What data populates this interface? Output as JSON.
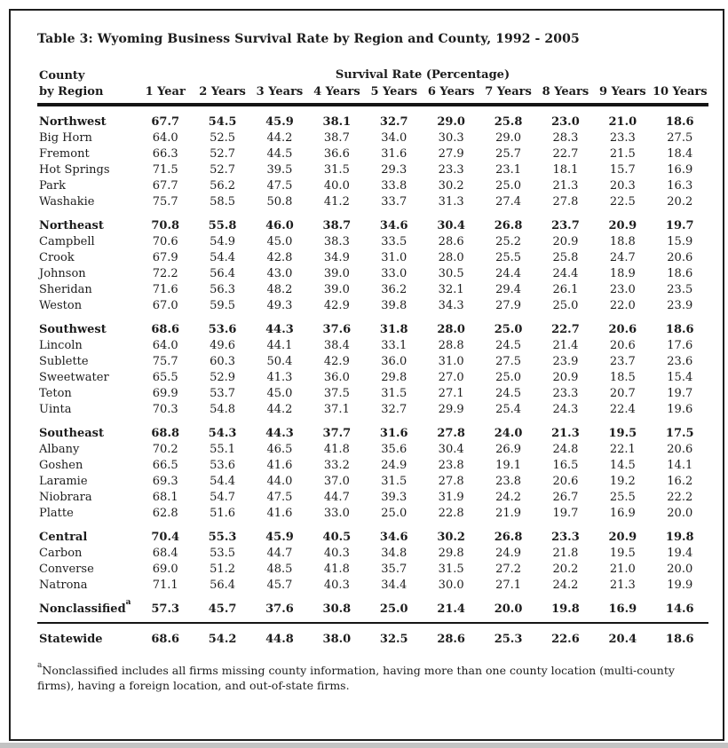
{
  "title": "Table 3: Wyoming Business Survival Rate by Region and County, 1992 - 2005",
  "table": {
    "row_header": {
      "line1": "County",
      "line2": "by Region"
    },
    "span_header": "Survival Rate (Percentage)",
    "year_headers": [
      "1 Year",
      "2 Years",
      "3 Years",
      "4 Years",
      "5 Years",
      "6 Years",
      "7 Years",
      "8 Years",
      "9 Years",
      "10 Years"
    ],
    "groups": [
      {
        "region": "Northwest",
        "values": [
          "67.7",
          "54.5",
          "45.9",
          "38.1",
          "32.7",
          "29.0",
          "25.8",
          "23.0",
          "21.0",
          "18.6"
        ],
        "counties": [
          {
            "name": "Big Horn",
            "values": [
              "64.0",
              "52.5",
              "44.2",
              "38.7",
              "34.0",
              "30.3",
              "29.0",
              "28.3",
              "23.3",
              "27.5"
            ]
          },
          {
            "name": "Fremont",
            "values": [
              "66.3",
              "52.7",
              "44.5",
              "36.6",
              "31.6",
              "27.9",
              "25.7",
              "22.7",
              "21.5",
              "18.4"
            ]
          },
          {
            "name": "Hot Springs",
            "values": [
              "71.5",
              "52.7",
              "39.5",
              "31.5",
              "29.3",
              "23.3",
              "23.1",
              "18.1",
              "15.7",
              "16.9"
            ]
          },
          {
            "name": "Park",
            "values": [
              "67.7",
              "56.2",
              "47.5",
              "40.0",
              "33.8",
              "30.2",
              "25.0",
              "21.3",
              "20.3",
              "16.3"
            ]
          },
          {
            "name": "Washakie",
            "values": [
              "75.7",
              "58.5",
              "50.8",
              "41.2",
              "33.7",
              "31.3",
              "27.4",
              "27.8",
              "22.5",
              "20.2"
            ]
          }
        ]
      },
      {
        "region": "Northeast",
        "values": [
          "70.8",
          "55.8",
          "46.0",
          "38.7",
          "34.6",
          "30.4",
          "26.8",
          "23.7",
          "20.9",
          "19.7"
        ],
        "counties": [
          {
            "name": "Campbell",
            "values": [
              "70.6",
              "54.9",
              "45.0",
              "38.3",
              "33.5",
              "28.6",
              "25.2",
              "20.9",
              "18.8",
              "15.9"
            ]
          },
          {
            "name": "Crook",
            "values": [
              "67.9",
              "54.4",
              "42.8",
              "34.9",
              "31.0",
              "28.0",
              "25.5",
              "25.8",
              "24.7",
              "20.6"
            ]
          },
          {
            "name": "Johnson",
            "values": [
              "72.2",
              "56.4",
              "43.0",
              "39.0",
              "33.0",
              "30.5",
              "24.4",
              "24.4",
              "18.9",
              "18.6"
            ]
          },
          {
            "name": "Sheridan",
            "values": [
              "71.6",
              "56.3",
              "48.2",
              "39.0",
              "36.2",
              "32.1",
              "29.4",
              "26.1",
              "23.0",
              "23.5"
            ]
          },
          {
            "name": "Weston",
            "values": [
              "67.0",
              "59.5",
              "49.3",
              "42.9",
              "39.8",
              "34.3",
              "27.9",
              "25.0",
              "22.0",
              "23.9"
            ]
          }
        ]
      },
      {
        "region": "Southwest",
        "values": [
          "68.6",
          "53.6",
          "44.3",
          "37.6",
          "31.8",
          "28.0",
          "25.0",
          "22.7",
          "20.6",
          "18.6"
        ],
        "counties": [
          {
            "name": "Lincoln",
            "values": [
              "64.0",
              "49.6",
              "44.1",
              "38.4",
              "33.1",
              "28.8",
              "24.5",
              "21.4",
              "20.6",
              "17.6"
            ]
          },
          {
            "name": "Sublette",
            "values": [
              "75.7",
              "60.3",
              "50.4",
              "42.9",
              "36.0",
              "31.0",
              "27.5",
              "23.9",
              "23.7",
              "23.6"
            ]
          },
          {
            "name": "Sweetwater",
            "values": [
              "65.5",
              "52.9",
              "41.3",
              "36.0",
              "29.8",
              "27.0",
              "25.0",
              "20.9",
              "18.5",
              "15.4"
            ]
          },
          {
            "name": "Teton",
            "values": [
              "69.9",
              "53.7",
              "45.0",
              "37.5",
              "31.5",
              "27.1",
              "24.5",
              "23.3",
              "20.7",
              "19.7"
            ]
          },
          {
            "name": "Uinta",
            "values": [
              "70.3",
              "54.8",
              "44.2",
              "37.1",
              "32.7",
              "29.9",
              "25.4",
              "24.3",
              "22.4",
              "19.6"
            ]
          }
        ]
      },
      {
        "region": "Southeast",
        "values": [
          "68.8",
          "54.3",
          "44.3",
          "37.7",
          "31.6",
          "27.8",
          "24.0",
          "21.3",
          "19.5",
          "17.5"
        ],
        "counties": [
          {
            "name": "Albany",
            "values": [
              "70.2",
              "55.1",
              "46.5",
              "41.8",
              "35.6",
              "30.4",
              "26.9",
              "24.8",
              "22.1",
              "20.6"
            ]
          },
          {
            "name": "Goshen",
            "values": [
              "66.5",
              "53.6",
              "41.6",
              "33.2",
              "24.9",
              "23.8",
              "19.1",
              "16.5",
              "14.5",
              "14.1"
            ]
          },
          {
            "name": "Laramie",
            "values": [
              "69.3",
              "54.4",
              "44.0",
              "37.0",
              "31.5",
              "27.8",
              "23.8",
              "20.6",
              "19.2",
              "16.2"
            ]
          },
          {
            "name": "Niobrara",
            "values": [
              "68.1",
              "54.7",
              "47.5",
              "44.7",
              "39.3",
              "31.9",
              "24.2",
              "26.7",
              "25.5",
              "22.2"
            ]
          },
          {
            "name": "Platte",
            "values": [
              "62.8",
              "51.6",
              "41.6",
              "33.0",
              "25.0",
              "22.8",
              "21.9",
              "19.7",
              "16.9",
              "20.0"
            ]
          }
        ]
      },
      {
        "region": "Central",
        "values": [
          "70.4",
          "55.3",
          "45.9",
          "40.5",
          "34.6",
          "30.2",
          "26.8",
          "23.3",
          "20.9",
          "19.8"
        ],
        "counties": [
          {
            "name": "Carbon",
            "values": [
              "68.4",
              "53.5",
              "44.7",
              "40.3",
              "34.8",
              "29.8",
              "24.9",
              "21.8",
              "19.5",
              "19.4"
            ]
          },
          {
            "name": "Converse",
            "values": [
              "69.0",
              "51.2",
              "48.5",
              "41.8",
              "35.7",
              "31.5",
              "27.2",
              "20.2",
              "21.0",
              "20.0"
            ]
          },
          {
            "name": "Natrona",
            "values": [
              "71.1",
              "56.4",
              "45.7",
              "40.3",
              "34.4",
              "30.0",
              "27.1",
              "24.2",
              "21.3",
              "19.9"
            ]
          }
        ]
      },
      {
        "region": "Nonclassified",
        "sup": "a",
        "rule_below": true,
        "values": [
          "57.3",
          "45.7",
          "37.6",
          "30.8",
          "25.0",
          "21.4",
          "20.0",
          "19.8",
          "16.9",
          "14.6"
        ],
        "counties": []
      },
      {
        "region": "Statewide",
        "values": [
          "68.6",
          "54.2",
          "44.8",
          "38.0",
          "32.5",
          "28.6",
          "25.3",
          "22.6",
          "20.4",
          "18.6"
        ],
        "counties": []
      }
    ]
  },
  "footnote": {
    "sup": "a",
    "text": "Nonclassified includes all firms missing county information, having more than one county location (multi-county firms), having a foreign location, and out-of-state firms."
  }
}
